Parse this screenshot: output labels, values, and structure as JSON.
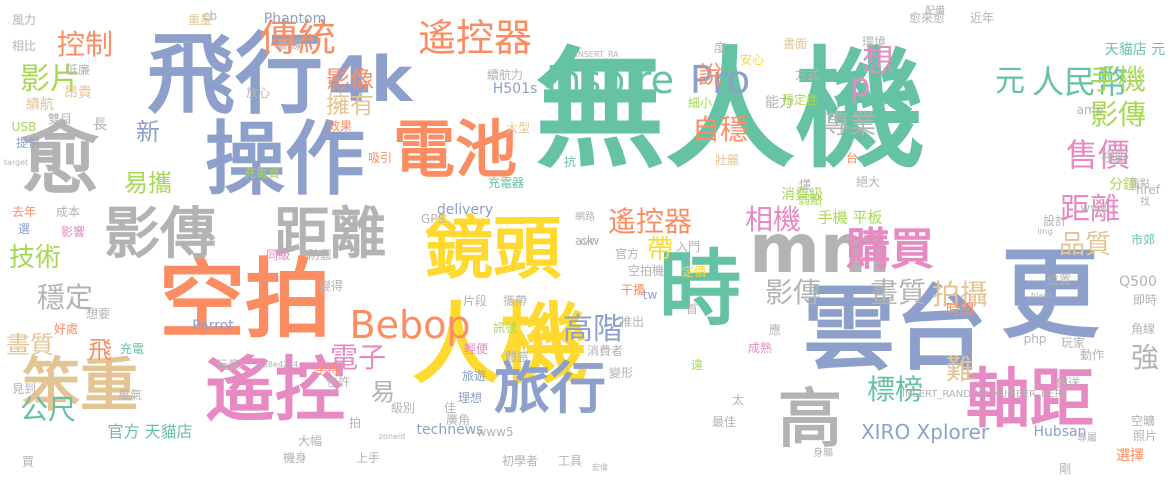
{
  "words": [
    {
      "text": "無人機",
      "color": "#66c2a5",
      "vertical": false
    },
    {
      "text": "雲台",
      "color": "#8da0cb",
      "vertical": false
    },
    {
      "text": "人機",
      "color": "#ffd92f",
      "vertical": false
    },
    {
      "text": "空拍",
      "color": "#fc8d62",
      "vertical": false
    },
    {
      "text": "飛行",
      "color": "#8da0cb",
      "vertical": false
    },
    {
      "text": "操作",
      "color": "#8da0cb",
      "vertical": false
    },
    {
      "text": "電池",
      "color": "#fc8d62",
      "vertical": false
    },
    {
      "text": "鏡頭",
      "color": "#ffd92f",
      "vertical": false
    },
    {
      "text": "時",
      "color": "#66c2a5",
      "vertical": false
    },
    {
      "text": "mm",
      "color": "#b3b3b3",
      "vertical": false
    },
    {
      "text": "更",
      "color": "#8da0cb",
      "vertical": false
    },
    {
      "text": "遙控",
      "color": "#e78ac3",
      "vertical": false
    },
    {
      "text": "笨重",
      "color": "#e5c494",
      "vertical": false
    },
    {
      "text": "影傳",
      "color": "#b3b3b3",
      "vertical": false
    },
    {
      "text": "距離",
      "color": "#b3b3b3",
      "vertical": false
    },
    {
      "text": "愈",
      "color": "#b3b3b3",
      "vertical": false
    },
    {
      "text": "4k",
      "color": "#8da0cb",
      "vertical": false
    },
    {
      "text": "旅行",
      "color": "#8da0cb",
      "vertical": false
    },
    {
      "text": "軸距",
      "color": "#e78ac3",
      "vertical": false
    },
    {
      "text": "高",
      "color": "#b3b3b3",
      "vertical": false
    },
    {
      "text": "Bebop",
      "color": "#fc8d62",
      "vertical": false
    },
    {
      "text": "傳統",
      "color": "#fc8d62",
      "vertical": false
    },
    {
      "text": "遙控器",
      "color": "#fc8d62",
      "vertical": false
    },
    {
      "text": "Inspire",
      "color": "#66c2a5",
      "vertical": false
    },
    {
      "text": "Pro",
      "color": "#8da0cb",
      "vertical": false
    },
    {
      "text": "購買",
      "color": "#e78ac3",
      "vertical": false
    },
    {
      "text": "元",
      "color": "#66c2a5",
      "vertical": false
    },
    {
      "text": "人民幣",
      "color": "#66c2a5",
      "vertical": false
    },
    {
      "text": "控制",
      "color": "#fc8d62",
      "vertical": false
    },
    {
      "text": "影片",
      "color": "#a6d854",
      "vertical": false
    },
    {
      "text": "影像",
      "color": "#fc8d62",
      "vertical": false
    },
    {
      "text": "擁有",
      "color": "#e5c494",
      "vertical": false
    },
    {
      "text": "想",
      "color": "#e78ac3",
      "vertical": false
    },
    {
      "text": "p",
      "color": "#e78ac3",
      "vertical": false
    },
    {
      "text": "手機",
      "color": "#a6d854",
      "vertical": false
    },
    {
      "text": "影傳",
      "color": "#a6d854",
      "vertical": false
    },
    {
      "text": "說",
      "color": "#fc8d62",
      "vertical": false
    },
    {
      "text": "自穩",
      "color": "#fc8d62",
      "vertical": false
    },
    {
      "text": "專業",
      "color": "#b3b3b3",
      "vertical": false
    },
    {
      "text": "售價",
      "color": "#e78ac3",
      "vertical": false
    },
    {
      "text": "新",
      "color": "#8da0cb",
      "vertical": false
    },
    {
      "text": "易攜",
      "color": "#a6d854",
      "vertical": false
    },
    {
      "text": "相機",
      "color": "#e78ac3",
      "vertical": false
    },
    {
      "text": "遙控器",
      "color": "#fc8d62",
      "vertical": false
    },
    {
      "text": "距離",
      "color": "#e78ac3",
      "vertical": false
    },
    {
      "text": "品質",
      "color": "#e5c494",
      "vertical": false
    },
    {
      "text": "拍攝",
      "color": "#e5c494",
      "vertical": false
    },
    {
      "text": "影傳",
      "color": "#b3b3b3",
      "vertical": false
    },
    {
      "text": "畫質",
      "color": "#b3b3b3",
      "vertical": false
    },
    {
      "text": "帶",
      "color": "#ffd92f",
      "vertical": false
    },
    {
      "text": "高階",
      "color": "#8da0cb",
      "vertical": false
    },
    {
      "text": "技術",
      "color": "#a6d854",
      "vertical": false
    },
    {
      "text": "穩定",
      "color": "#b3b3b3",
      "vertical": false
    },
    {
      "text": "畫質",
      "color": "#e5c494",
      "vertical": false
    },
    {
      "text": "飛",
      "color": "#fc8d62",
      "vertical": false
    },
    {
      "text": "公尺",
      "color": "#66c2a5",
      "vertical": false
    },
    {
      "text": "電子",
      "color": "#e78ac3",
      "vertical": false
    },
    {
      "text": "易",
      "color": "#b3b3b3",
      "vertical": false
    },
    {
      "text": "標榜",
      "color": "#66c2a5",
      "vertical": false
    },
    {
      "text": "難",
      "color": "#e5c494",
      "vertical": false
    },
    {
      "text": "強",
      "color": "#b3b3b3",
      "vertical": false
    },
    {
      "text": "XIRO Xplorer",
      "color": "#8da0cb",
      "vertical": false
    },
    {
      "text": "官方 天貓店",
      "color": "#66c2a5",
      "vertical": false
    },
    {
      "text": "手機 平板",
      "color": "#a6d854",
      "vertical": false
    },
    {
      "text": "消費級",
      "color": "#a6d854",
      "vertical": false
    },
    {
      "text": "能力",
      "color": "#b3b3b3",
      "vertical": false
    },
    {
      "text": "天貓店 元",
      "color": "#66c2a5",
      "vertical": false
    },
    {
      "text": "分鐘",
      "color": "#a6d854",
      "vertical": false
    },
    {
      "text": "視野",
      "color": "#b3b3b3",
      "vertical": false
    },
    {
      "text": "市郊",
      "color": "#66c2a5",
      "vertical": false
    },
    {
      "text": "Q500",
      "color": "#b3b3b3",
      "vertical": false
    },
    {
      "text": "即時",
      "color": "#b3b3b3",
      "vertical": false
    },
    {
      "text": "時間",
      "color": "#fc8d62",
      "vertical": false
    },
    {
      "text": "角線",
      "color": "#b3b3b3",
      "vertical": false
    },
    {
      "text": "傳送",
      "color": "#b3b3b3",
      "vertical": false
    },
    {
      "text": "選擇",
      "color": "#fc8d62",
      "vertical": false
    },
    {
      "text": "Hubsan",
      "color": "#8da0cb",
      "vertical": false
    },
    {
      "text": "technews",
      "color": "#8da0cb",
      "vertical": false
    },
    {
      "text": "www5",
      "color": "#b3b3b3",
      "vertical": false
    },
    {
      "text": "Phantom",
      "color": "#8da0cb",
      "vertical": false
    },
    {
      "text": "H501s",
      "color": "#8da0cb",
      "vertical": false
    },
    {
      "text": "Parrot",
      "color": "#8da0cb",
      "vertical": false
    },
    {
      "text": "delivery",
      "color": "#8da0cb",
      "vertical": false
    },
    {
      "text": "GPS",
      "color": "#b3b3b3",
      "vertical": false
    },
    {
      "text": "續航",
      "color": "#e5c494",
      "vertical": false
    },
    {
      "text": "昂貴",
      "color": "#e5c494",
      "vertical": false
    },
    {
      "text": "長",
      "color": "#b3b3b3",
      "vertical": false
    },
    {
      "text": "低廉",
      "color": "#b3b3b3",
      "vertical": false
    },
    {
      "text": "重量",
      "color": "#e5c494",
      "vertical": false
    },
    {
      "text": "斷線",
      "color": "#b3b3b3",
      "vertical": false
    },
    {
      "text": "放心",
      "color": "#b3b3b3",
      "vertical": false
    },
    {
      "text": "效果",
      "color": "#fc8d62",
      "vertical": false
    },
    {
      "text": "吸引",
      "color": "#fc8d62",
      "vertical": false
    },
    {
      "text": "大型",
      "color": "#e5c494",
      "vertical": false
    },
    {
      "text": "抗",
      "color": "#66c2a5",
      "vertical": false
    },
    {
      "text": "壯麗",
      "color": "#e5c494",
      "vertical": false
    },
    {
      "text": "台",
      "color": "#fc8d62",
      "vertical": false
    },
    {
      "text": "懂",
      "color": "#b3b3b3",
      "vertical": false
    },
    {
      "text": "弱點",
      "color": "#a6d854",
      "vertical": false
    },
    {
      "text": "絕大",
      "color": "#b3b3b3",
      "vertical": false
    },
    {
      "text": "穩定性",
      "color": "#a6d854",
      "vertical": false
    },
    {
      "text": "方式",
      "color": "#b3b3b3",
      "vertical": false
    },
    {
      "text": "細小",
      "color": "#a6d854",
      "vertical": false
    },
    {
      "text": "安心",
      "color": "#ffd92f",
      "vertical": false
    },
    {
      "text": "度",
      "color": "#b3b3b3",
      "vertical": false
    },
    {
      "text": "書面",
      "color": "#e5c494",
      "vertical": false
    },
    {
      "text": "環境",
      "color": "#b3b3b3",
      "vertical": false
    },
    {
      "text": "愈來愈",
      "color": "#b3b3b3",
      "vertical": false
    },
    {
      "text": "近年",
      "color": "#b3b3b3",
      "vertical": false
    },
    {
      "text": "風力",
      "color": "#b3b3b3",
      "vertical": false
    },
    {
      "text": "相比",
      "color": "#b3b3b3",
      "vertical": false
    },
    {
      "text": "USB",
      "color": "#a6d854",
      "vertical": false
    },
    {
      "text": "提供",
      "color": "#8da0cb",
      "vertical": false
    },
    {
      "text": "去年",
      "color": "#fc8d62",
      "vertical": false
    },
    {
      "text": "成本",
      "color": "#b3b3b3",
      "vertical": false
    },
    {
      "text": "選",
      "color": "#8da0cb",
      "vertical": false
    },
    {
      "text": "影響",
      "color": "#e78ac3",
      "vertical": false
    },
    {
      "text": "雙目",
      "color": "#b3b3b3",
      "vertical": false
    },
    {
      "text": "充電寶",
      "color": "#a6d854",
      "vertical": false
    },
    {
      "text": "充電器",
      "color": "#66c2a5",
      "vertical": false
    },
    {
      "text": "續航力",
      "color": "#b3b3b3",
      "vertical": false
    },
    {
      "text": "同級",
      "color": "#e78ac3",
      "vertical": false
    },
    {
      "text": "防震",
      "color": "#b3b3b3",
      "vertical": false
    },
    {
      "text": "定價",
      "color": "#ffd92f",
      "vertical": false
    },
    {
      "text": "入門",
      "color": "#b3b3b3",
      "vertical": false
    },
    {
      "text": "官方",
      "color": "#b3b3b3",
      "vertical": false
    },
    {
      "text": "空拍機",
      "color": "#b3b3b3",
      "vertical": false
    },
    {
      "text": "首",
      "color": "#b3b3b3",
      "vertical": false
    },
    {
      "text": "干擾",
      "color": "#fc8d62",
      "vertical": false
    },
    {
      "text": "推出",
      "color": "#b3b3b3",
      "vertical": false
    },
    {
      "text": "攜帶",
      "color": "#b3b3b3",
      "vertical": false
    },
    {
      "text": "片段",
      "color": "#b3b3b3",
      "vertical": false
    },
    {
      "text": "訊號",
      "color": "#a6d854",
      "vertical": false
    },
    {
      "text": "輕便",
      "color": "#e78ac3",
      "vertical": false
    },
    {
      "text": "體感",
      "color": "#b3b3b3",
      "vertical": false
    },
    {
      "text": "消費者",
      "color": "#b3b3b3",
      "vertical": false
    },
    {
      "text": "遠",
      "color": "#a6d854",
      "vertical": false
    },
    {
      "text": "變形",
      "color": "#b3b3b3",
      "vertical": false
    },
    {
      "text": "成熟",
      "color": "#e78ac3",
      "vertical": false
    },
    {
      "text": "應",
      "color": "#b3b3b3",
      "vertical": false
    },
    {
      "text": "太",
      "color": "#b3b3b3",
      "vertical": false
    },
    {
      "text": "最佳",
      "color": "#b3b3b3",
      "vertical": false
    },
    {
      "text": "旅遊",
      "color": "#8da0cb",
      "vertical": false
    },
    {
      "text": "理想",
      "color": "#8da0cb",
      "vertical": false
    },
    {
      "text": "級別",
      "color": "#b3b3b3",
      "vertical": false
    },
    {
      "text": "也許",
      "color": "#b3b3b3",
      "vertical": false
    },
    {
      "text": "佳",
      "color": "#b3b3b3",
      "vertical": false
    },
    {
      "text": "拍",
      "color": "#b3b3b3",
      "vertical": false
    },
    {
      "text": "廣角",
      "color": "#b3b3b3",
      "vertical": false
    },
    {
      "text": "大幅",
      "color": "#b3b3b3",
      "vertical": false
    },
    {
      "text": "上手",
      "color": "#b3b3b3",
      "vertical": false
    },
    {
      "text": "機身",
      "color": "#b3b3b3",
      "vertical": false
    },
    {
      "text": "初學者",
      "color": "#b3b3b3",
      "vertical": false
    },
    {
      "text": "工具",
      "color": "#b3b3b3",
      "vertical": false
    },
    {
      "text": "買",
      "color": "#b3b3b3",
      "vertical": false
    },
    {
      "text": "好處",
      "color": "#fc8d62",
      "vertical": false
    },
    {
      "text": "想要",
      "color": "#b3b3b3",
      "vertical": false
    },
    {
      "text": "變得",
      "color": "#b3b3b3",
      "vertical": false
    },
    {
      "text": "手持",
      "color": "#fc8d62",
      "vertical": false
    },
    {
      "text": "充電",
      "color": "#66c2a5",
      "vertical": false
    },
    {
      "text": "玩意",
      "color": "#b3b3b3",
      "vertical": false
    },
    {
      "text": "見到",
      "color": "#b3b3b3",
      "vertical": false
    },
    {
      "text": "風氣",
      "color": "#b3b3b3",
      "vertical": false
    },
    {
      "text": "tw",
      "color": "#8da0cb",
      "vertical": false
    },
    {
      "text": "php",
      "color": "#b3b3b3",
      "vertical": false
    },
    {
      "text": "cb",
      "color": "#b3b3b3",
      "vertical": false
    },
    {
      "text": "amp",
      "color": "#b3b3b3",
      "vertical": false
    },
    {
      "text": "href",
      "color": "#b3b3b3",
      "vertical": false
    },
    {
      "text": "www",
      "color": "#b3b3b3",
      "vertical": false
    },
    {
      "text": "設計",
      "color": "#b3b3b3",
      "vertical": false
    },
    {
      "text": "位置",
      "color": "#b3b3b3",
      "vertical": false
    },
    {
      "text": "玩家",
      "color": "#b3b3b3",
      "vertical": false
    },
    {
      "text": "動作",
      "color": "#b3b3b3",
      "vertical": false
    },
    {
      "text": "空曠",
      "color": "#b3b3b3",
      "vertical": false
    },
    {
      "text": "照片",
      "color": "#b3b3b3",
      "vertical": false
    },
    {
      "text": "剛",
      "color": "#b3b3b3",
      "vertical": false
    },
    {
      "text": "身軀",
      "color": "#b3b3b3",
      "vertical": false
    },
    {
      "text": "專屬",
      "color": "#b3b3b3",
      "vertical": false
    },
    {
      "text": "指點",
      "color": "#b3b3b3",
      "vertical": false
    },
    {
      "text": "找",
      "color": "#b3b3b3",
      "vertical": false
    },
    {
      "text": "配備",
      "color": "#b3b3b3",
      "vertical": false
    },
    {
      "text": "網路",
      "color": "#b3b3b3",
      "vertical": false
    },
    {
      "text": "宏偉",
      "color": "#b3b3b3",
      "vertical": false
    },
    {
      "text": "a38e4234",
      "color": "#b3b3b3",
      "vertical": false
    },
    {
      "text": "INSERT_RANDOM_NUMBER_HERE",
      "color": "#b3b3b3",
      "vertical": false
    },
    {
      "text": "INSERT_RA",
      "color": "#b3b3b3",
      "vertical": false
    },
    {
      "text": "_blank",
      "color": "#b3b3b3",
      "vertical": false
    },
    {
      "text": "target",
      "color": "#b3b3b3",
      "vertical": false
    },
    {
      "text": "zoneid",
      "color": "#b3b3b3",
      "vertical": false
    },
    {
      "text": "img",
      "color": "#b3b3b3",
      "vertical": false
    },
    {
      "text": "ck",
      "color": "#b3b3b3",
      "vertical": false
    },
    {
      "text": "avw",
      "color": "#b3b3b3",
      "vertical": false
    }
  ]
}
